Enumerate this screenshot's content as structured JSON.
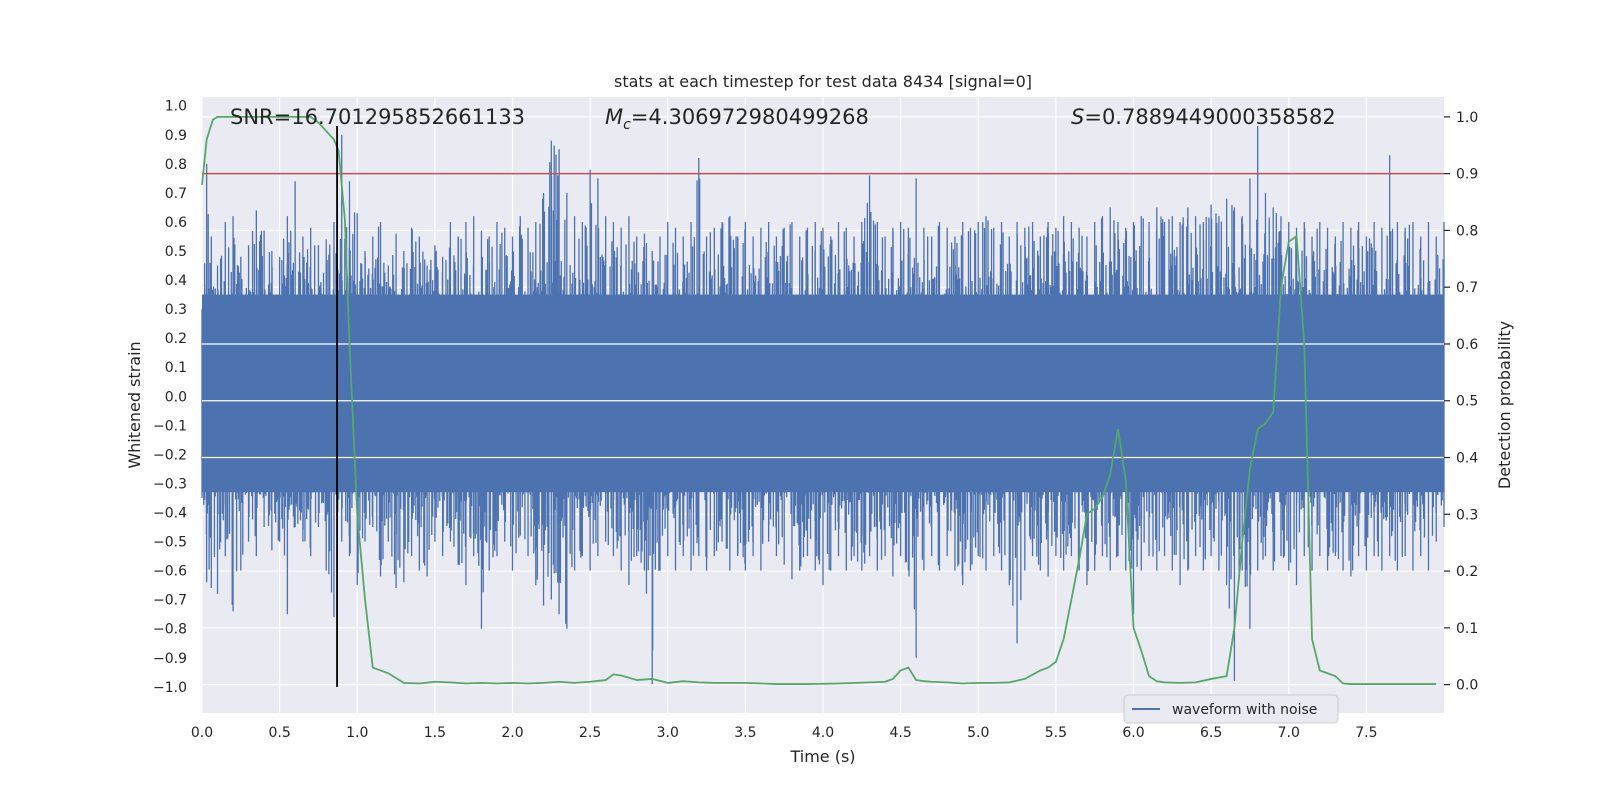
{
  "chart_data": {
    "type": "line",
    "title": "stats at each timestep for test data 8434 [signal=0]",
    "xlabel": "Time (s)",
    "ylabel_left": "Whitened strain",
    "ylabel_right": "Detection probability",
    "xlim": [
      0.0,
      8.0
    ],
    "ylim_left": [
      -1.09,
      1.03
    ],
    "ylim_right": [
      -0.05,
      1.035
    ],
    "x_ticks": [
      "0.0",
      "0.5",
      "1.0",
      "1.5",
      "2.0",
      "2.5",
      "3.0",
      "3.5",
      "4.0",
      "4.5",
      "5.0",
      "5.5",
      "6.0",
      "6.5",
      "7.0",
      "7.5"
    ],
    "x_tick_values": [
      0.0,
      0.5,
      1.0,
      1.5,
      2.0,
      2.5,
      3.0,
      3.5,
      4.0,
      4.5,
      5.0,
      5.5,
      6.0,
      6.5,
      7.0,
      7.5
    ],
    "y_ticks_left": [
      "1.0",
      "0.9",
      "0.8",
      "0.7",
      "0.6",
      "0.5",
      "0.4",
      "0.3",
      "0.2",
      "0.1",
      "0.0",
      "−0.1",
      "−0.2",
      "−0.3",
      "−0.4",
      "−0.5",
      "−0.6",
      "−0.7",
      "−0.8",
      "−0.9",
      "−1.0"
    ],
    "y_tick_values_left": [
      1.0,
      0.9,
      0.8,
      0.7,
      0.6,
      0.5,
      0.4,
      0.3,
      0.2,
      0.1,
      0.0,
      -0.1,
      -0.2,
      -0.3,
      -0.4,
      -0.5,
      -0.6,
      -0.7,
      -0.8,
      -0.9,
      -1.0
    ],
    "y_ticks_right": [
      "1.0",
      "0.9",
      "0.8",
      "0.7",
      "0.6",
      "0.5",
      "0.4",
      "0.3",
      "0.2",
      "0.1",
      "0.0"
    ],
    "y_tick_values_right": [
      1.0,
      0.9,
      0.8,
      0.7,
      0.6,
      0.5,
      0.4,
      0.3,
      0.2,
      0.1,
      0.0
    ],
    "annotations": {
      "snr": "SNR=16.701295852661133",
      "mc_symbol": "M",
      "mc_sub": "c",
      "mc_value": "=4.306972980499268",
      "s_symbol": "S",
      "s_value": "=0.7889449000358582"
    },
    "threshold_line": {
      "axis": "right",
      "value": 0.9,
      "color": "#c44e52"
    },
    "marker_line": {
      "x": 0.87,
      "y_range_left": [
        -1.0,
        0.93
      ],
      "color": "#000000"
    },
    "legend": {
      "label": "waveform with noise",
      "position": "lower-right"
    },
    "grid": true,
    "colors": {
      "waveform": "#4c72b0",
      "probability": "#55a868",
      "background": "#eaeaf2"
    },
    "series": [
      {
        "name": "waveform with noise",
        "axis": "left",
        "description_note": "dense noise trace",
        "envelope": [
          [
            0.0,
            -0.35,
            0.28
          ],
          [
            0.03,
            -0.64,
            0.8
          ],
          [
            0.06,
            -0.66,
            0.55
          ],
          [
            0.1,
            -0.68,
            0.45
          ],
          [
            0.15,
            -0.55,
            0.6
          ],
          [
            0.2,
            -0.74,
            0.62
          ],
          [
            0.25,
            -0.6,
            0.48
          ],
          [
            0.3,
            -0.5,
            0.52
          ],
          [
            0.35,
            -0.55,
            0.64
          ],
          [
            0.4,
            -0.45,
            0.57
          ],
          [
            0.45,
            -0.53,
            0.5
          ],
          [
            0.5,
            -0.5,
            0.48
          ],
          [
            0.55,
            -0.75,
            0.62
          ],
          [
            0.6,
            -0.45,
            0.74
          ],
          [
            0.65,
            -0.5,
            0.55
          ],
          [
            0.7,
            -0.55,
            0.58
          ],
          [
            0.75,
            -0.45,
            0.52
          ],
          [
            0.8,
            -0.6,
            0.54
          ],
          [
            0.85,
            -0.76,
            0.6
          ],
          [
            0.9,
            -0.5,
            0.9
          ],
          [
            0.95,
            -0.55,
            0.74
          ],
          [
            1.0,
            -0.65,
            0.63
          ],
          [
            1.05,
            -0.5,
            0.5
          ],
          [
            1.1,
            -0.45,
            0.55
          ],
          [
            1.15,
            -0.62,
            0.6
          ],
          [
            1.2,
            -0.5,
            0.45
          ],
          [
            1.25,
            -0.66,
            0.56
          ],
          [
            1.3,
            -0.64,
            0.5
          ],
          [
            1.35,
            -0.55,
            0.58
          ],
          [
            1.4,
            -0.6,
            0.55
          ],
          [
            1.45,
            -0.62,
            0.45
          ],
          [
            1.5,
            -0.5,
            0.52
          ],
          [
            1.55,
            -0.55,
            0.48
          ],
          [
            1.6,
            -0.5,
            0.6
          ],
          [
            1.65,
            -0.58,
            0.55
          ],
          [
            1.7,
            -0.65,
            0.6
          ],
          [
            1.75,
            -0.55,
            0.62
          ],
          [
            1.8,
            -0.8,
            0.57
          ],
          [
            1.85,
            -0.6,
            0.55
          ],
          [
            1.9,
            -0.55,
            0.6
          ],
          [
            1.95,
            -0.5,
            0.58
          ],
          [
            2.0,
            -0.6,
            0.55
          ],
          [
            2.05,
            -0.48,
            0.62
          ],
          [
            2.1,
            -0.55,
            0.58
          ],
          [
            2.15,
            -0.65,
            0.6
          ],
          [
            2.2,
            -0.72,
            0.7
          ],
          [
            2.25,
            -0.7,
            0.88
          ],
          [
            2.3,
            -0.75,
            0.85
          ],
          [
            2.35,
            -0.8,
            0.7
          ],
          [
            2.4,
            -0.6,
            0.62
          ],
          [
            2.45,
            -0.55,
            0.6
          ],
          [
            2.5,
            -0.6,
            0.78
          ],
          [
            2.55,
            -0.55,
            0.75
          ],
          [
            2.6,
            -0.5,
            0.62
          ],
          [
            2.65,
            -0.55,
            0.6
          ],
          [
            2.7,
            -0.6,
            0.58
          ],
          [
            2.75,
            -0.65,
            0.62
          ],
          [
            2.8,
            -0.55,
            0.55
          ],
          [
            2.85,
            -0.6,
            0.56
          ],
          [
            2.9,
            -0.99,
            0.5
          ],
          [
            2.95,
            -0.6,
            0.55
          ],
          [
            3.0,
            -0.55,
            0.6
          ],
          [
            3.05,
            -0.6,
            0.58
          ],
          [
            3.1,
            -0.55,
            0.55
          ],
          [
            3.15,
            -0.6,
            0.6
          ],
          [
            3.2,
            -0.55,
            0.82
          ],
          [
            3.25,
            -0.6,
            0.55
          ],
          [
            3.3,
            -0.55,
            0.58
          ],
          [
            3.35,
            -0.5,
            0.6
          ],
          [
            3.4,
            -0.6,
            0.62
          ],
          [
            3.45,
            -0.55,
            0.55
          ],
          [
            3.5,
            -0.6,
            0.6
          ],
          [
            3.55,
            -0.55,
            0.55
          ],
          [
            3.6,
            -0.6,
            0.58
          ],
          [
            3.65,
            -0.5,
            0.6
          ],
          [
            3.7,
            -0.55,
            0.55
          ],
          [
            3.75,
            -0.58,
            0.58
          ],
          [
            3.8,
            -0.63,
            0.6
          ],
          [
            3.85,
            -0.6,
            0.55
          ],
          [
            3.9,
            -0.55,
            0.58
          ],
          [
            3.95,
            -0.6,
            0.6
          ],
          [
            4.0,
            -0.65,
            0.58
          ],
          [
            4.05,
            -0.6,
            0.55
          ],
          [
            4.1,
            -0.55,
            0.6
          ],
          [
            4.15,
            -0.6,
            0.58
          ],
          [
            4.2,
            -0.55,
            0.55
          ],
          [
            4.25,
            -0.6,
            0.6
          ],
          [
            4.3,
            -0.55,
            0.76
          ],
          [
            4.35,
            -0.6,
            0.6
          ],
          [
            4.4,
            -0.55,
            0.55
          ],
          [
            4.45,
            -0.62,
            0.58
          ],
          [
            4.5,
            -0.55,
            0.6
          ],
          [
            4.55,
            -0.6,
            0.58
          ],
          [
            4.6,
            -0.9,
            0.75
          ],
          [
            4.65,
            -0.6,
            0.58
          ],
          [
            4.7,
            -0.55,
            0.55
          ],
          [
            4.75,
            -0.6,
            0.6
          ],
          [
            4.8,
            -0.55,
            0.58
          ],
          [
            4.85,
            -0.6,
            0.55
          ],
          [
            4.9,
            -0.65,
            0.6
          ],
          [
            4.95,
            -0.6,
            0.58
          ],
          [
            5.0,
            -0.55,
            0.6
          ],
          [
            5.05,
            -0.6,
            0.62
          ],
          [
            5.1,
            -0.55,
            0.58
          ],
          [
            5.15,
            -0.6,
            0.6
          ],
          [
            5.2,
            -0.65,
            0.55
          ],
          [
            5.25,
            -0.85,
            0.6
          ],
          [
            5.3,
            -0.6,
            0.58
          ],
          [
            5.35,
            -0.55,
            0.6
          ],
          [
            5.4,
            -0.6,
            0.55
          ],
          [
            5.45,
            -0.62,
            0.6
          ],
          [
            5.5,
            -0.55,
            0.58
          ],
          [
            5.55,
            -0.6,
            0.62
          ],
          [
            5.6,
            -0.55,
            0.6
          ],
          [
            5.65,
            -0.6,
            0.58
          ],
          [
            5.7,
            -0.65,
            0.55
          ],
          [
            5.75,
            -0.6,
            0.6
          ],
          [
            5.8,
            -0.55,
            0.62
          ],
          [
            5.85,
            -0.6,
            0.65
          ],
          [
            5.9,
            -0.55,
            0.6
          ],
          [
            5.95,
            -0.6,
            0.58
          ],
          [
            6.0,
            -0.75,
            0.6
          ],
          [
            6.05,
            -0.6,
            0.62
          ],
          [
            6.1,
            -0.55,
            0.6
          ],
          [
            6.15,
            -0.6,
            0.65
          ],
          [
            6.2,
            -0.55,
            0.6
          ],
          [
            6.25,
            -0.6,
            0.62
          ],
          [
            6.3,
            -0.65,
            0.6
          ],
          [
            6.35,
            -0.6,
            0.65
          ],
          [
            6.4,
            -0.55,
            0.62
          ],
          [
            6.45,
            -0.6,
            0.6
          ],
          [
            6.5,
            -0.55,
            0.66
          ],
          [
            6.55,
            -0.6,
            0.62
          ],
          [
            6.6,
            -0.65,
            0.68
          ],
          [
            6.65,
            -0.98,
            0.65
          ],
          [
            6.7,
            -0.6,
            0.62
          ],
          [
            6.75,
            -0.8,
            0.75
          ],
          [
            6.8,
            -0.6,
            0.93
          ],
          [
            6.85,
            -0.55,
            0.7
          ],
          [
            6.9,
            -0.6,
            0.65
          ],
          [
            6.95,
            -0.55,
            0.62
          ],
          [
            7.0,
            -0.6,
            0.6
          ],
          [
            7.05,
            -0.65,
            0.58
          ],
          [
            7.1,
            -0.55,
            0.6
          ],
          [
            7.15,
            -0.6,
            0.55
          ],
          [
            7.2,
            -0.55,
            0.6
          ],
          [
            7.25,
            -0.6,
            0.58
          ],
          [
            7.3,
            -0.55,
            0.55
          ],
          [
            7.35,
            -0.6,
            0.6
          ],
          [
            7.4,
            -0.62,
            0.58
          ],
          [
            7.45,
            -0.55,
            0.6
          ],
          [
            7.5,
            -0.6,
            0.55
          ],
          [
            7.55,
            -0.55,
            0.6
          ],
          [
            7.6,
            -0.6,
            0.58
          ],
          [
            7.65,
            -0.55,
            0.83
          ],
          [
            7.7,
            -0.6,
            0.6
          ],
          [
            7.75,
            -0.55,
            0.58
          ],
          [
            7.8,
            -0.6,
            0.6
          ],
          [
            7.85,
            -0.55,
            0.55
          ],
          [
            7.9,
            -0.6,
            0.6
          ],
          [
            7.95,
            -0.5,
            0.55
          ],
          [
            8.0,
            -0.45,
            0.6
          ]
        ]
      },
      {
        "name": "detection probability",
        "axis": "right",
        "x": [
          0.0,
          0.03,
          0.07,
          0.1,
          0.2,
          0.3,
          0.4,
          0.5,
          0.6,
          0.65,
          0.7,
          0.75,
          0.8,
          0.85,
          0.88,
          0.92,
          0.95,
          1.0,
          1.05,
          1.1,
          1.2,
          1.3,
          1.4,
          1.5,
          1.6,
          1.7,
          1.8,
          1.9,
          2.0,
          2.1,
          2.2,
          2.3,
          2.4,
          2.5,
          2.6,
          2.65,
          2.7,
          2.8,
          2.9,
          3.0,
          3.1,
          3.2,
          3.3,
          3.5,
          3.7,
          3.9,
          4.1,
          4.3,
          4.4,
          4.45,
          4.5,
          4.55,
          4.6,
          4.65,
          4.7,
          4.8,
          4.9,
          5.0,
          5.1,
          5.2,
          5.3,
          5.4,
          5.45,
          5.5,
          5.55,
          5.6,
          5.65,
          5.7,
          5.75,
          5.8,
          5.85,
          5.9,
          5.95,
          6.0,
          6.05,
          6.1,
          6.15,
          6.2,
          6.3,
          6.4,
          6.5,
          6.6,
          6.65,
          6.7,
          6.75,
          6.8,
          6.85,
          6.9,
          6.95,
          7.0,
          7.05,
          7.1,
          7.15,
          7.2,
          7.25,
          7.3,
          7.35,
          7.4,
          7.5,
          7.6,
          7.7,
          7.8,
          7.9,
          7.95
        ],
        "y": [
          0.88,
          0.96,
          0.995,
          1.0,
          1.0,
          1.0,
          1.0,
          1.0,
          1.0,
          1.0,
          1.0,
          0.99,
          0.975,
          0.96,
          0.94,
          0.82,
          0.6,
          0.3,
          0.15,
          0.03,
          0.02,
          0.003,
          0.002,
          0.005,
          0.004,
          0.002,
          0.003,
          0.002,
          0.003,
          0.002,
          0.003,
          0.005,
          0.003,
          0.005,
          0.008,
          0.018,
          0.016,
          0.008,
          0.01,
          0.003,
          0.006,
          0.004,
          0.003,
          0.003,
          0.001,
          0.001,
          0.002,
          0.004,
          0.005,
          0.01,
          0.025,
          0.03,
          0.008,
          0.006,
          0.005,
          0.004,
          0.002,
          0.003,
          0.003,
          0.004,
          0.01,
          0.025,
          0.03,
          0.04,
          0.08,
          0.15,
          0.22,
          0.3,
          0.31,
          0.33,
          0.37,
          0.45,
          0.36,
          0.1,
          0.06,
          0.015,
          0.006,
          0.004,
          0.003,
          0.004,
          0.01,
          0.015,
          0.1,
          0.25,
          0.38,
          0.45,
          0.46,
          0.48,
          0.7,
          0.78,
          0.79,
          0.6,
          0.08,
          0.025,
          0.02,
          0.015,
          0.002,
          0.001,
          0.001,
          0.001,
          0.001,
          0.001,
          0.001,
          0.001
        ]
      }
    ]
  }
}
